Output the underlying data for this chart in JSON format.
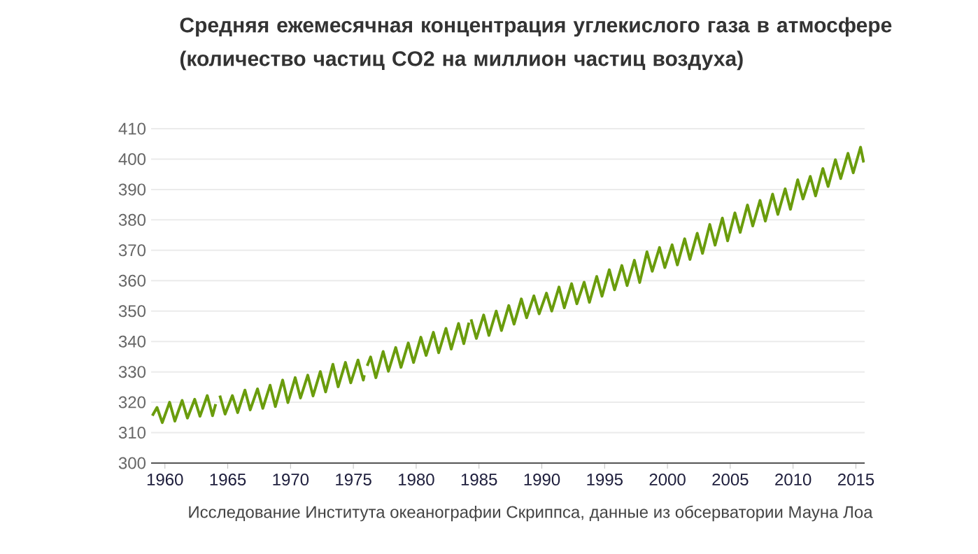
{
  "chart_data": {
    "type": "line",
    "title": "Средняя ежемесячная концентрация углекислого газа в атмосфере (количество частиц CO2 на миллион частиц воздуха)",
    "annotations": [
      "Исследование Института океанографии Скриппса, данные из обсерватории Мауна Лоа"
    ],
    "color": "#6a9c0c",
    "x": [
      1959.0,
      1959.37,
      1959.79,
      1960.37,
      1960.79,
      1961.37,
      1961.79,
      1962.37,
      1962.79,
      1963.37,
      1963.79,
      1964.04,
      1964.2,
      1964.37,
      1964.79,
      1965.37,
      1965.79,
      1966.37,
      1966.79,
      1967.37,
      1967.79,
      1968.37,
      1968.79,
      1969.37,
      1969.79,
      1970.37,
      1970.79,
      1971.37,
      1971.79,
      1972.37,
      1972.79,
      1973.37,
      1973.79,
      1974.37,
      1974.79,
      1975.37,
      1975.79,
      1975.87,
      1976.0,
      1976.1,
      1976.37,
      1976.79,
      1977.37,
      1977.79,
      1978.37,
      1978.79,
      1979.37,
      1979.79,
      1980.37,
      1980.79,
      1981.37,
      1981.79,
      1982.37,
      1982.79,
      1983.37,
      1983.79,
      1984.2,
      1984.28,
      1984.37,
      1984.79,
      1985.37,
      1985.79,
      1986.37,
      1986.79,
      1987.37,
      1987.79,
      1988.37,
      1988.79,
      1989.37,
      1989.79,
      1990.37,
      1990.79,
      1991.37,
      1991.79,
      1992.37,
      1992.79,
      1993.37,
      1993.79,
      1994.37,
      1994.79,
      1995.37,
      1995.79,
      1996.37,
      1996.79,
      1997.37,
      1997.79,
      1998.37,
      1998.79,
      1999.37,
      1999.79,
      2000.37,
      2000.79,
      2001.37,
      2001.79,
      2002.37,
      2002.79,
      2003.37,
      2003.79,
      2004.37,
      2004.79,
      2005.37,
      2005.79,
      2006.37,
      2006.79,
      2007.37,
      2007.79,
      2008.37,
      2008.79,
      2009.37,
      2009.79,
      2010.37,
      2010.79,
      2011.37,
      2011.79,
      2012.37,
      2012.79,
      2013.37,
      2013.79,
      2014.37,
      2014.79,
      2015.37,
      2015.62
    ],
    "values": [
      315.6,
      318.3,
      313.3,
      320.0,
      313.8,
      320.6,
      314.8,
      321.0,
      315.4,
      322.2,
      315.6,
      319.4,
      null,
      322.2,
      316.1,
      322.2,
      316.6,
      324.0,
      317.5,
      324.4,
      318.0,
      325.6,
      318.6,
      327.3,
      319.9,
      328.1,
      321.4,
      328.9,
      322.1,
      330.1,
      323.4,
      332.5,
      325.1,
      333.1,
      326.4,
      333.9,
      327.3,
      328.9,
      null,
      332.0,
      334.9,
      328.1,
      336.7,
      330.2,
      338.0,
      331.5,
      339.5,
      333.1,
      341.4,
      335.4,
      343.0,
      336.3,
      344.3,
      337.5,
      345.9,
      339.3,
      346.2,
      null,
      347.3,
      341.0,
      348.7,
      342.0,
      350.0,
      343.6,
      351.8,
      345.7,
      354.0,
      347.8,
      355.0,
      349.1,
      355.9,
      350.0,
      357.9,
      351.1,
      359.0,
      352.4,
      359.5,
      352.9,
      361.4,
      354.9,
      363.6,
      357.0,
      365.0,
      358.4,
      366.7,
      359.4,
      369.5,
      363.1,
      370.9,
      364.3,
      371.8,
      365.2,
      373.8,
      367.0,
      375.6,
      369.0,
      378.5,
      371.7,
      380.6,
      373.1,
      382.3,
      375.9,
      384.9,
      378.0,
      386.4,
      379.6,
      388.5,
      381.8,
      390.2,
      383.5,
      393.2,
      386.9,
      394.3,
      387.9,
      396.9,
      391.0,
      399.8,
      393.6,
      401.9,
      395.5,
      403.9,
      398.9
    ],
    "xlim": [
      1958.9,
      2015.7
    ],
    "xticks": [
      1960,
      1965,
      1970,
      1975,
      1980,
      1985,
      1990,
      1995,
      2000,
      2005,
      2010,
      2015
    ],
    "ylim": [
      300,
      410
    ],
    "yticks": [
      300,
      310,
      320,
      330,
      340,
      350,
      360,
      370,
      380,
      390,
      400,
      410
    ],
    "grid": "y"
  }
}
